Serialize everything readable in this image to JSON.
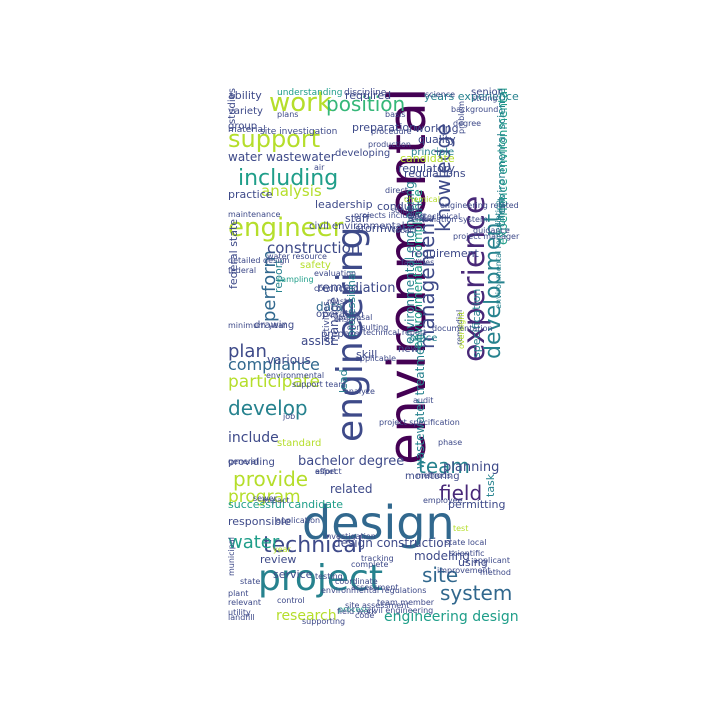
{
  "palette": {
    "deep": "#440154",
    "purple": "#482878",
    "indigo": "#3e4a89",
    "blue": "#31688e",
    "teal": "#26828e",
    "green": "#1f9e89",
    "mint": "#35b779",
    "lime": "#6ece58",
    "yellow": "#b5de2b",
    "gold": "#fde725"
  },
  "words": [
    {
      "text": "environmental",
      "color": "deep"
    },
    {
      "text": "design",
      "color": "blue"
    },
    {
      "text": "project",
      "color": "teal"
    },
    {
      "text": "engineering",
      "color": "indigo"
    },
    {
      "text": "engineer",
      "color": "yellow"
    },
    {
      "text": "experience",
      "color": "purple"
    },
    {
      "text": "work",
      "color": "yellow"
    },
    {
      "text": "position",
      "color": "mint"
    },
    {
      "text": "support",
      "color": "yellow"
    },
    {
      "text": "including",
      "color": "green"
    },
    {
      "text": "technical",
      "color": "indigo"
    },
    {
      "text": "system",
      "color": "blue"
    },
    {
      "text": "develop",
      "color": "teal"
    },
    {
      "text": "development",
      "color": "teal"
    },
    {
      "text": "management",
      "color": "indigo"
    },
    {
      "text": "knowledge",
      "color": "indigo"
    },
    {
      "text": "provide",
      "color": "yellow"
    },
    {
      "text": "team",
      "color": "teal"
    },
    {
      "text": "field",
      "color": "purple"
    },
    {
      "text": "site",
      "color": "blue"
    },
    {
      "text": "plan",
      "color": "indigo"
    },
    {
      "text": "perform",
      "color": "blue"
    },
    {
      "text": "water",
      "color": "green"
    },
    {
      "text": "program",
      "color": "yellow"
    },
    {
      "text": "participate",
      "color": "yellow"
    },
    {
      "text": "compliance",
      "color": "blue"
    },
    {
      "text": "construction",
      "color": "indigo"
    },
    {
      "text": "analysis",
      "color": "yellow"
    },
    {
      "text": "research",
      "color": "yellow"
    },
    {
      "text": "engineering design",
      "color": "green"
    },
    {
      "text": "include",
      "color": "indigo"
    },
    {
      "text": "planning",
      "color": "indigo"
    },
    {
      "text": "related",
      "color": "indigo"
    },
    {
      "text": "design construction",
      "color": "indigo"
    },
    {
      "text": "water wastewater",
      "color": "indigo"
    },
    {
      "text": "experience environmental",
      "color": "green"
    },
    {
      "text": "environmental compliance",
      "color": "green"
    },
    {
      "text": "environmental engineering",
      "color": "teal"
    },
    {
      "text": "environmental science",
      "color": "teal"
    },
    {
      "text": "wastewater treatment",
      "color": "teal"
    },
    {
      "text": "years experience",
      "color": "teal"
    },
    {
      "text": "remediation",
      "color": "indigo"
    },
    {
      "text": "data",
      "color": "blue"
    },
    {
      "text": "report",
      "color": "teal"
    },
    {
      "text": "assist",
      "color": "indigo"
    },
    {
      "text": "various",
      "color": "indigo"
    },
    {
      "text": "review",
      "color": "indigo"
    },
    {
      "text": "service",
      "color": "indigo"
    },
    {
      "text": "federal state",
      "color": "indigo"
    },
    {
      "text": "bachelor degree",
      "color": "indigo"
    },
    {
      "text": "successful candidate",
      "color": "green"
    },
    {
      "text": "responsible",
      "color": "indigo"
    },
    {
      "text": "leadership",
      "color": "indigo"
    },
    {
      "text": "stormwater",
      "color": "indigo"
    },
    {
      "text": "requirement",
      "color": "indigo"
    },
    {
      "text": "regulations",
      "color": "indigo"
    },
    {
      "text": "permitting",
      "color": "indigo"
    },
    {
      "text": "regulatory",
      "color": "indigo"
    },
    {
      "text": "conduct",
      "color": "indigo"
    },
    {
      "text": "staff",
      "color": "indigo"
    },
    {
      "text": "lead",
      "color": "teal"
    },
    {
      "text": "skill",
      "color": "indigo"
    },
    {
      "text": "manage",
      "color": "indigo"
    },
    {
      "text": "professional",
      "color": "teal"
    },
    {
      "text": "specification",
      "color": "teal"
    },
    {
      "text": "modeling",
      "color": "indigo"
    },
    {
      "text": "using",
      "color": "indigo"
    },
    {
      "text": "task",
      "color": "teal"
    },
    {
      "text": "client",
      "color": "teal"
    },
    {
      "text": "required",
      "color": "indigo"
    },
    {
      "text": "preparation",
      "color": "indigo"
    },
    {
      "text": "working",
      "color": "indigo"
    },
    {
      "text": "quality",
      "color": "indigo"
    },
    {
      "text": "candidate",
      "color": "yellow"
    },
    {
      "text": "ability",
      "color": "indigo"
    },
    {
      "text": "variety",
      "color": "indigo"
    },
    {
      "text": "group",
      "color": "indigo"
    },
    {
      "text": "studies",
      "color": "indigo"
    },
    {
      "text": "practice",
      "color": "indigo"
    },
    {
      "text": "civil environmental",
      "color": "indigo"
    },
    {
      "text": "safety",
      "color": "yellow"
    },
    {
      "text": "operation",
      "color": "indigo"
    },
    {
      "text": "prepare",
      "color": "indigo"
    },
    {
      "text": "activities",
      "color": "indigo"
    },
    {
      "text": "drawing",
      "color": "indigo"
    },
    {
      "text": "providing",
      "color": "indigo"
    },
    {
      "text": "standard",
      "color": "yellow"
    },
    {
      "text": "office",
      "color": "teal"
    },
    {
      "text": "new",
      "color": "indigo"
    },
    {
      "text": "monitoring",
      "color": "indigo"
    },
    {
      "text": "principle",
      "color": "teal"
    },
    {
      "text": "developing",
      "color": "indigo"
    },
    {
      "text": "senior",
      "color": "indigo"
    },
    {
      "text": "material",
      "color": "indigo"
    },
    {
      "text": "site investigation",
      "color": "indigo"
    },
    {
      "text": "discipline",
      "color": "indigo"
    },
    {
      "text": "understanding",
      "color": "green"
    },
    {
      "text": "water resource",
      "color": "indigo"
    },
    {
      "text": "evaluation",
      "color": "indigo"
    },
    {
      "text": "sampling",
      "color": "green"
    },
    {
      "text": "conducting",
      "color": "indigo"
    },
    {
      "text": "must",
      "color": "indigo"
    },
    {
      "text": "ensure",
      "color": "indigo"
    },
    {
      "text": "consulting",
      "color": "indigo"
    },
    {
      "text": "state local",
      "color": "indigo"
    },
    {
      "text": "remedial",
      "color": "indigo"
    },
    {
      "text": "impact",
      "color": "indigo"
    },
    {
      "text": "application",
      "color": "indigo"
    },
    {
      "text": "investigation",
      "color": "indigo"
    },
    {
      "text": "complete",
      "color": "indigo"
    },
    {
      "text": "environmental regulations",
      "color": "indigo"
    },
    {
      "text": "coordinate",
      "color": "indigo"
    },
    {
      "text": "assessment",
      "color": "indigo"
    },
    {
      "text": "process",
      "color": "green"
    },
    {
      "text": "supporting",
      "color": "indigo"
    },
    {
      "text": "control",
      "color": "indigo"
    },
    {
      "text": "relevant",
      "color": "indigo"
    },
    {
      "text": "plant",
      "color": "indigo"
    },
    {
      "text": "year",
      "color": "yellow"
    },
    {
      "text": "utility",
      "color": "indigo"
    },
    {
      "text": "method",
      "color": "indigo"
    },
    {
      "text": "scientific",
      "color": "indigo"
    },
    {
      "text": "applicant",
      "color": "indigo"
    },
    {
      "text": "facilities",
      "color": "indigo"
    },
    {
      "text": "guidance",
      "color": "indigo"
    },
    {
      "text": "documentation",
      "color": "indigo"
    },
    {
      "text": "proposal",
      "color": "indigo"
    },
    {
      "text": "technical report",
      "color": "indigo"
    },
    {
      "text": "project manager",
      "color": "indigo"
    },
    {
      "text": "engineering related",
      "color": "indigo"
    },
    {
      "text": "oversight",
      "color": "yellow"
    },
    {
      "text": "degree",
      "color": "indigo"
    },
    {
      "text": "problem",
      "color": "indigo"
    },
    {
      "text": "strong",
      "color": "indigo"
    },
    {
      "text": "background",
      "color": "indigo"
    },
    {
      "text": "procedure",
      "color": "indigo"
    },
    {
      "text": "production",
      "color": "indigo"
    },
    {
      "text": "environmental remediation",
      "color": "teal"
    },
    {
      "text": "municipal",
      "color": "indigo"
    },
    {
      "text": "sewer",
      "color": "indigo"
    },
    {
      "text": "phase",
      "color": "indigo"
    },
    {
      "text": "general",
      "color": "indigo"
    },
    {
      "text": "federal",
      "color": "indigo"
    },
    {
      "text": "detailed design",
      "color": "indigo"
    },
    {
      "text": "maintenance",
      "color": "indigo"
    },
    {
      "text": "geotechnical",
      "color": "indigo"
    },
    {
      "text": "projects including",
      "color": "indigo"
    },
    {
      "text": "chemical",
      "color": "yellow"
    },
    {
      "text": "remediation system",
      "color": "indigo"
    },
    {
      "text": "civil engineering",
      "color": "indigo"
    },
    {
      "text": "site assessment",
      "color": "indigo"
    },
    {
      "text": "tracking",
      "color": "indigo"
    },
    {
      "text": "testing",
      "color": "indigo"
    },
    {
      "text": "landfill",
      "color": "indigo"
    },
    {
      "text": "minimum year",
      "color": "indigo"
    },
    {
      "text": "job",
      "color": "indigo"
    },
    {
      "text": "audit",
      "color": "indigo"
    },
    {
      "text": "support team",
      "color": "indigo"
    },
    {
      "text": "effort",
      "color": "indigo"
    },
    {
      "text": "aspect",
      "color": "indigo"
    },
    {
      "text": "basis",
      "color": "indigo"
    },
    {
      "text": "local",
      "color": "indigo"
    },
    {
      "text": "direct",
      "color": "indigo"
    },
    {
      "text": "code",
      "color": "indigo"
    },
    {
      "text": "solution",
      "color": "indigo"
    },
    {
      "text": "improvement",
      "color": "indigo"
    },
    {
      "text": "analyze",
      "color": "indigo"
    },
    {
      "text": "employee",
      "color": "indigo"
    },
    {
      "text": "applicable",
      "color": "indigo"
    },
    {
      "text": "science",
      "color": "indigo"
    },
    {
      "text": "team member",
      "color": "indigo"
    },
    {
      "text": "field work",
      "color": "indigo"
    },
    {
      "text": "environmental",
      "color": "indigo"
    },
    {
      "text": "project specification",
      "color": "indigo"
    },
    {
      "text": "methods",
      "color": "indigo"
    },
    {
      "text": "test",
      "color": "yellow"
    },
    {
      "text": "state",
      "color": "indigo"
    },
    {
      "text": "plans",
      "color": "indigo"
    },
    {
      "text": "air",
      "color": "indigo"
    }
  ]
}
